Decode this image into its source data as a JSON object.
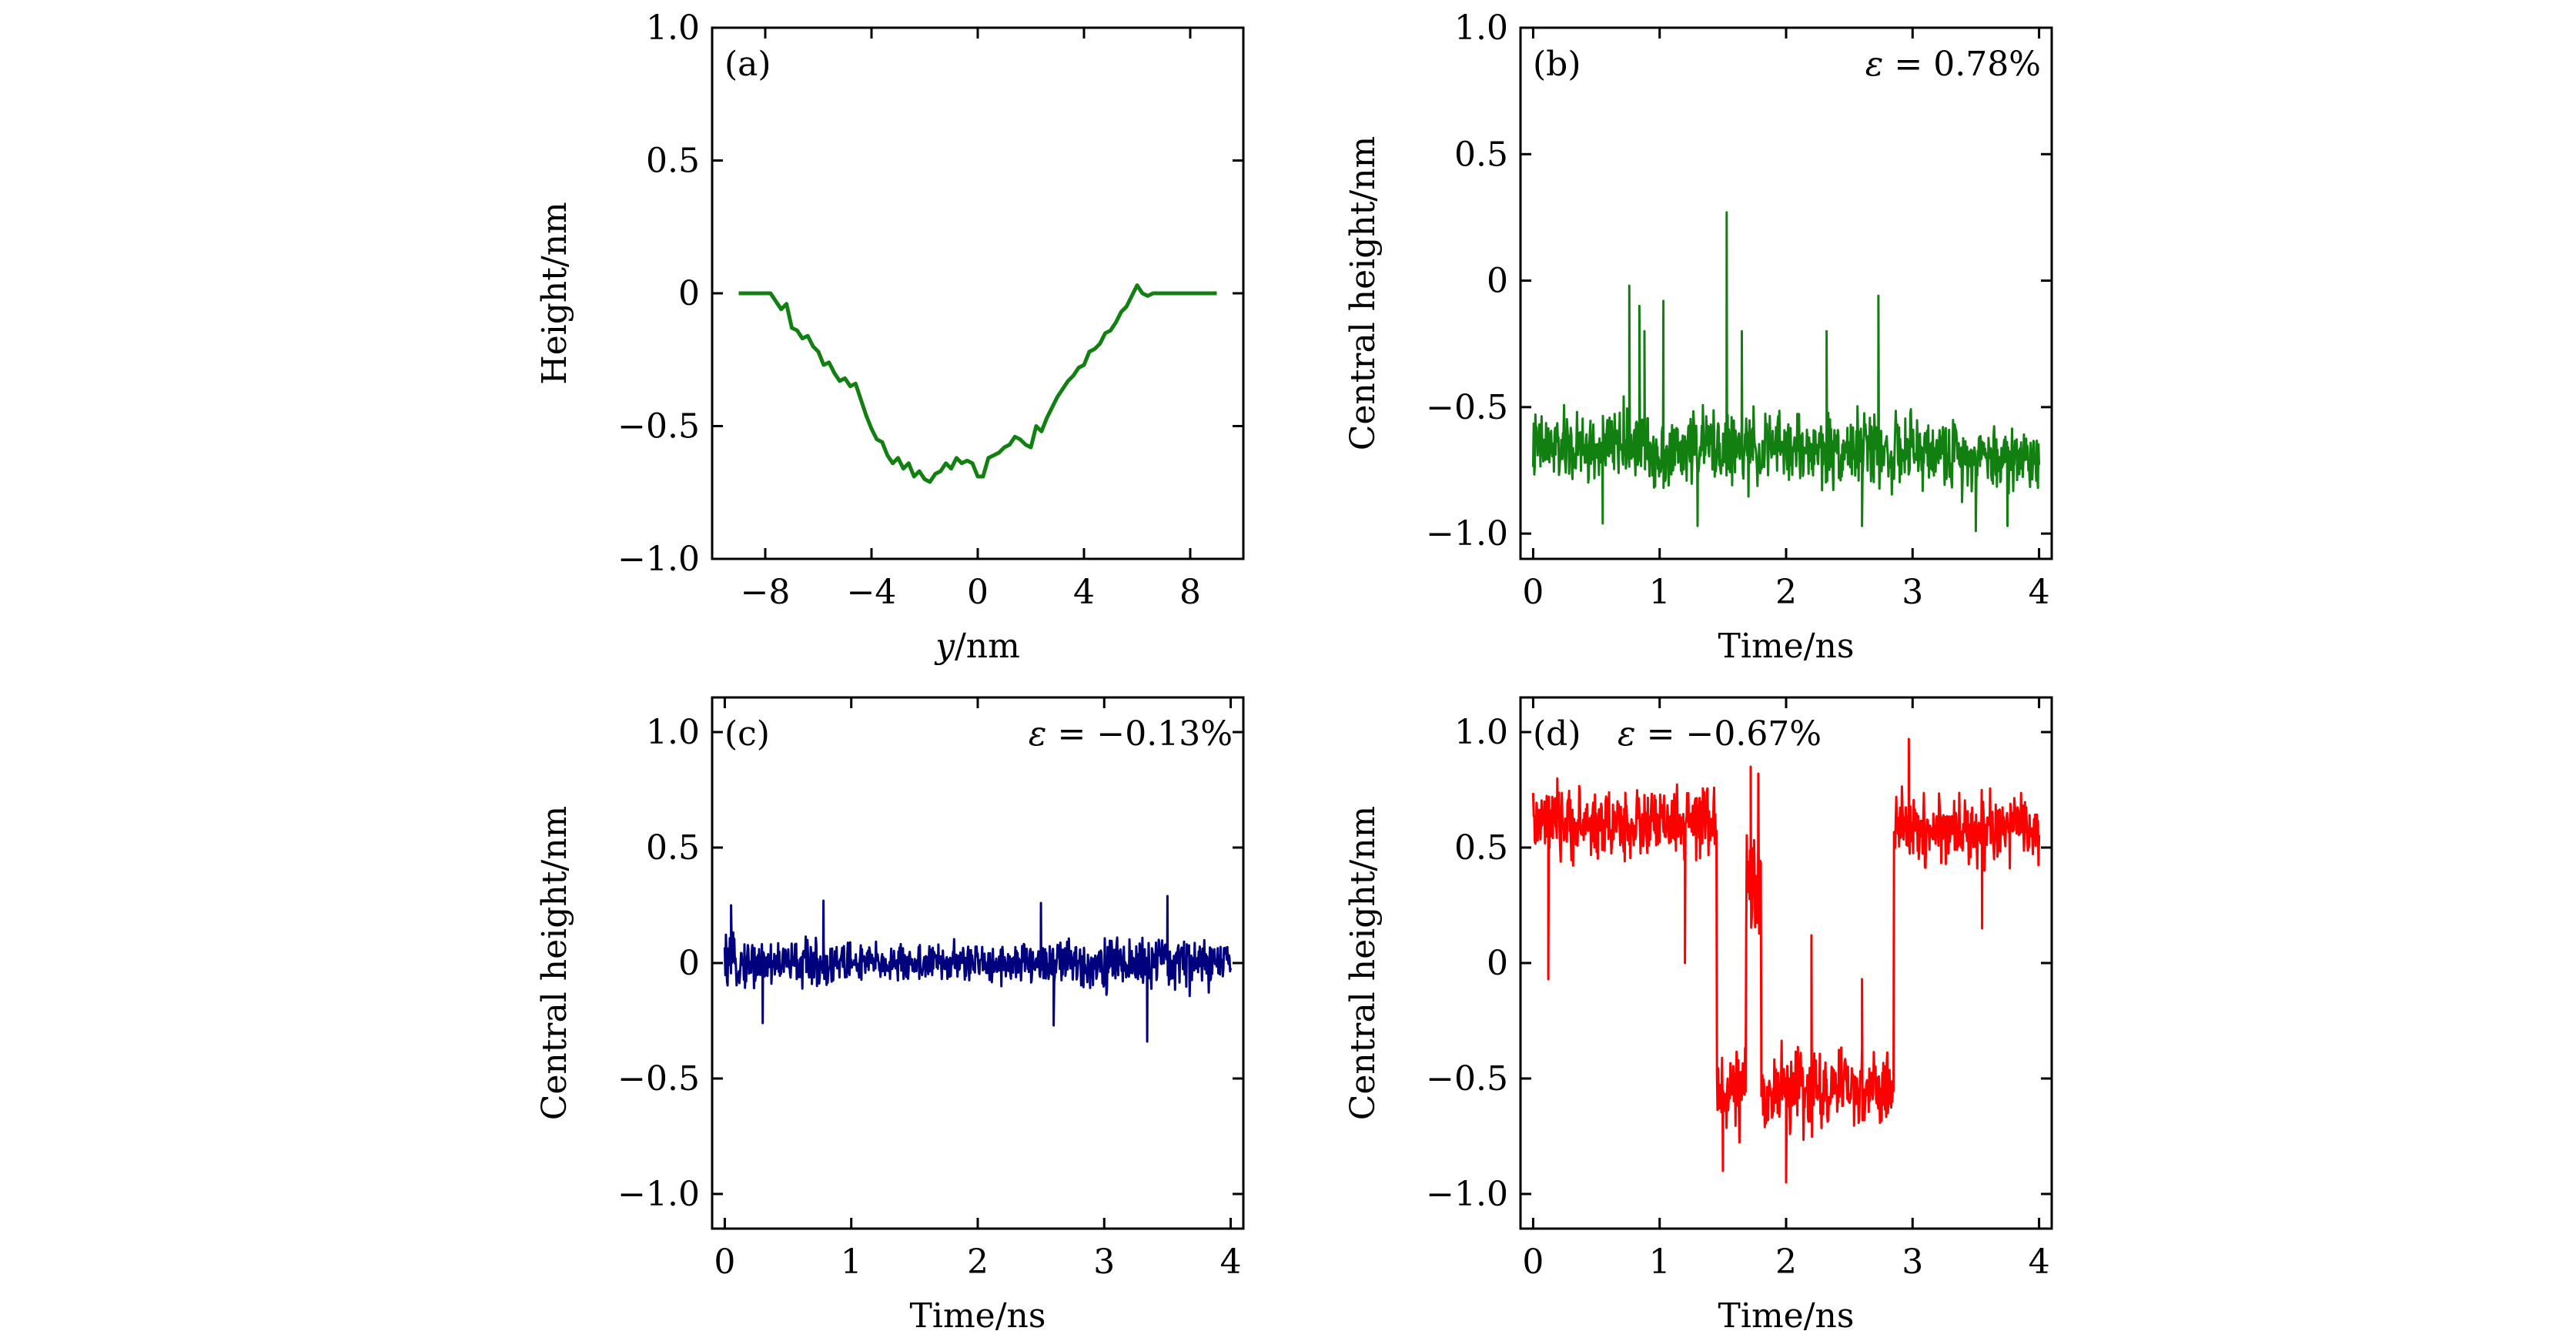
{
  "figure": {
    "panels_order": [
      "a",
      "b",
      "c",
      "d"
    ]
  },
  "chart_data": [
    {
      "id": "a",
      "type": "line",
      "panel_label": "(a)",
      "annotation": "",
      "xlabel": "y/nm",
      "ylabel": "Height/nm",
      "xlim": [
        -10,
        10
      ],
      "ylim": [
        -1.0,
        1.0
      ],
      "xticks": [
        -8,
        -4,
        0,
        4,
        8
      ],
      "xtick_labels": [
        "−8",
        "−4",
        "0",
        "4",
        "8"
      ],
      "yticks": [
        1.0,
        0.5,
        0,
        -0.5,
        -1.0
      ],
      "ytick_labels": [
        "1.0",
        "0.5",
        "0",
        "−0.5",
        "−1.0"
      ],
      "grid": false,
      "color": "#118011",
      "series": [
        {
          "x": [
            -9.0,
            -8.6,
            -8.2,
            -7.8,
            -7.6,
            -7.4,
            -7.2,
            -7.0,
            -6.8,
            -6.6,
            -6.4,
            -6.2,
            -6.0,
            -5.8,
            -5.6,
            -5.4,
            -5.2,
            -5.0,
            -4.8,
            -4.6,
            -4.4,
            -4.2,
            -4.0,
            -3.8,
            -3.6,
            -3.4,
            -3.2,
            -3.0,
            -2.8,
            -2.6,
            -2.4,
            -2.2,
            -2.0,
            -1.8,
            -1.6,
            -1.4,
            -1.2,
            -1.0,
            -0.8,
            -0.6,
            -0.4,
            -0.2,
            0.0,
            0.2,
            0.4,
            0.6,
            0.8,
            1.0,
            1.2,
            1.4,
            1.6,
            1.8,
            2.0,
            2.2,
            2.4,
            2.6,
            2.8,
            3.0,
            3.2,
            3.4,
            3.6,
            3.8,
            4.0,
            4.2,
            4.4,
            4.6,
            4.8,
            5.0,
            5.2,
            5.4,
            5.6,
            5.8,
            6.0,
            6.2,
            6.4,
            6.6,
            6.8,
            7.0,
            7.2,
            7.4,
            7.6,
            7.8,
            8.2,
            8.6,
            9.0
          ],
          "y": [
            0.0,
            0.0,
            0.0,
            0.0,
            -0.03,
            -0.06,
            -0.04,
            -0.13,
            -0.14,
            -0.17,
            -0.16,
            -0.2,
            -0.22,
            -0.27,
            -0.26,
            -0.3,
            -0.33,
            -0.32,
            -0.35,
            -0.34,
            -0.4,
            -0.46,
            -0.51,
            -0.55,
            -0.56,
            -0.61,
            -0.64,
            -0.62,
            -0.66,
            -0.64,
            -0.69,
            -0.67,
            -0.7,
            -0.71,
            -0.68,
            -0.67,
            -0.64,
            -0.66,
            -0.62,
            -0.64,
            -0.63,
            -0.64,
            -0.69,
            -0.69,
            -0.62,
            -0.61,
            -0.6,
            -0.58,
            -0.57,
            -0.54,
            -0.55,
            -0.57,
            -0.58,
            -0.5,
            -0.52,
            -0.47,
            -0.43,
            -0.39,
            -0.36,
            -0.33,
            -0.31,
            -0.28,
            -0.27,
            -0.22,
            -0.21,
            -0.19,
            -0.15,
            -0.14,
            -0.11,
            -0.07,
            -0.05,
            -0.01,
            0.03,
            0.0,
            -0.01,
            0.0,
            0.0,
            0.0,
            0.0,
            0.0,
            0.0,
            0.0,
            0.0,
            0.0,
            0.0
          ]
        }
      ]
    },
    {
      "id": "b",
      "type": "line",
      "panel_label": "(b)",
      "annotation": "ε = 0.78%",
      "xlabel": "Time/ns",
      "ylabel": "Central height/nm",
      "xlim": [
        -0.1,
        4.1
      ],
      "ylim": [
        -1.1,
        1.0
      ],
      "xticks": [
        0,
        1,
        2,
        3,
        4
      ],
      "xtick_labels": [
        "0",
        "1",
        "2",
        "3",
        "4"
      ],
      "yticks": [
        1.0,
        0.5,
        0,
        -0.5,
        -1.0
      ],
      "ytick_labels": [
        "1.0",
        "0.5",
        "0",
        "−0.5",
        "−1.0"
      ],
      "grid": false,
      "color": "#118011",
      "series": [
        {
          "x_start": 0,
          "x_end": 4,
          "segments": [
            {
              "x0": 0.0,
              "x1": 0.3,
              "mean": -0.66,
              "amp": 0.2
            },
            {
              "x0": 0.3,
              "x1": 0.6,
              "mean": -0.67,
              "amp": 0.21
            },
            {
              "x0": 0.6,
              "x1": 0.9,
              "mean": -0.64,
              "amp": 0.2
            },
            {
              "x0": 0.9,
              "x1": 1.2,
              "mean": -0.68,
              "amp": 0.21
            },
            {
              "x0": 1.2,
              "x1": 1.5,
              "mean": -0.65,
              "amp": 0.2
            },
            {
              "x0": 1.5,
              "x1": 1.8,
              "mean": -0.67,
              "amp": 0.21
            },
            {
              "x0": 1.8,
              "x1": 2.1,
              "mean": -0.66,
              "amp": 0.2
            },
            {
              "x0": 2.1,
              "x1": 2.4,
              "mean": -0.67,
              "amp": 0.21
            },
            {
              "x0": 2.4,
              "x1": 2.7,
              "mean": -0.66,
              "amp": 0.2
            },
            {
              "x0": 2.7,
              "x1": 3.0,
              "mean": -0.68,
              "amp": 0.21
            },
            {
              "x0": 3.0,
              "x1": 3.3,
              "mean": -0.68,
              "amp": 0.19
            },
            {
              "x0": 3.3,
              "x1": 3.6,
              "mean": -0.69,
              "amp": 0.2
            },
            {
              "x0": 3.6,
              "x1": 4.0,
              "mean": -0.7,
              "amp": 0.2
            }
          ],
          "spikes": [
            {
              "x": 0.76,
              "y": -0.02
            },
            {
              "x": 0.84,
              "y": -0.1
            },
            {
              "x": 1.03,
              "y": -0.08
            },
            {
              "x": 1.53,
              "y": 0.27
            },
            {
              "x": 2.73,
              "y": -0.06
            },
            {
              "x": 0.88,
              "y": -0.2
            },
            {
              "x": 1.65,
              "y": -0.2
            },
            {
              "x": 2.32,
              "y": -0.2
            }
          ],
          "dips": [
            {
              "x": 0.55,
              "y": -0.96
            },
            {
              "x": 1.3,
              "y": -0.97
            },
            {
              "x": 2.6,
              "y": -0.97
            },
            {
              "x": 3.5,
              "y": -0.99
            },
            {
              "x": 3.75,
              "y": -0.97
            }
          ]
        }
      ]
    },
    {
      "id": "c",
      "type": "line",
      "panel_label": "(c)",
      "annotation": "ε = −0.13%",
      "xlabel": "Time/ns",
      "ylabel": "Central height/nm",
      "xlim": [
        -0.1,
        4.1
      ],
      "ylim": [
        -1.15,
        1.15
      ],
      "xticks": [
        0,
        1,
        2,
        3,
        4
      ],
      "xtick_labels": [
        "0",
        "1",
        "2",
        "3",
        "4"
      ],
      "yticks": [
        1.0,
        0.5,
        0,
        -0.5,
        -1.0
      ],
      "ytick_labels": [
        "1.0",
        "0.5",
        "0",
        "−0.5",
        "−1.0"
      ],
      "grid": false,
      "color": "#00007f",
      "series": [
        {
          "x_start": 0,
          "x_end": 4,
          "segments": [
            {
              "x0": 0.0,
              "x1": 1.0,
              "mean": 0.0,
              "amp": 0.15
            },
            {
              "x0": 1.0,
              "x1": 2.4,
              "mean": 0.0,
              "amp": 0.12
            },
            {
              "x0": 2.4,
              "x1": 4.0,
              "mean": 0.0,
              "amp": 0.16
            }
          ],
          "spikes": [
            {
              "x": 0.05,
              "y": 0.25
            },
            {
              "x": 0.78,
              "y": 0.27
            },
            {
              "x": 3.5,
              "y": 0.29
            },
            {
              "x": 2.5,
              "y": 0.26
            }
          ],
          "dips": [
            {
              "x": 0.3,
              "y": -0.26
            },
            {
              "x": 2.6,
              "y": -0.27
            },
            {
              "x": 3.34,
              "y": -0.34
            }
          ]
        }
      ]
    },
    {
      "id": "d",
      "type": "line",
      "panel_label": "(d)",
      "annotation": "ε = −0.67%",
      "xlabel": "Time/ns",
      "ylabel": "Central height/nm",
      "xlim": [
        -0.1,
        4.1
      ],
      "ylim": [
        -1.15,
        1.15
      ],
      "xticks": [
        0,
        1,
        2,
        3,
        4
      ],
      "xtick_labels": [
        "0",
        "1",
        "2",
        "3",
        "4"
      ],
      "yticks": [
        1.0,
        0.5,
        0,
        -0.5,
        -1.0
      ],
      "ytick_labels": [
        "1.0",
        "0.5",
        "0",
        "−0.5",
        "−1.0"
      ],
      "grid": false,
      "color": "#ff0000",
      "series": [
        {
          "x_start": 0,
          "x_end": 4,
          "segments": [
            {
              "x0": 0.0,
              "x1": 1.45,
              "mean": 0.6,
              "amp": 0.22
            },
            {
              "x0": 1.45,
              "x1": 1.68,
              "mean": -0.55,
              "amp": 0.25
            },
            {
              "x0": 1.68,
              "x1": 1.8,
              "mean": 0.3,
              "amp": 0.45
            },
            {
              "x0": 1.8,
              "x1": 2.85,
              "mean": -0.55,
              "amp": 0.25
            },
            {
              "x0": 2.85,
              "x1": 4.0,
              "mean": 0.58,
              "amp": 0.22
            }
          ],
          "spikes": [
            {
              "x": 2.97,
              "y": 0.97
            },
            {
              "x": 1.72,
              "y": 0.85
            },
            {
              "x": 1.78,
              "y": 0.82
            },
            {
              "x": 2.2,
              "y": 0.12
            },
            {
              "x": 2.6,
              "y": -0.07
            }
          ],
          "dips": [
            {
              "x": 0.12,
              "y": -0.07
            },
            {
              "x": 1.2,
              "y": 0.0
            },
            {
              "x": 2.0,
              "y": -0.95
            },
            {
              "x": 1.5,
              "y": -0.9
            },
            {
              "x": 3.55,
              "y": 0.15
            }
          ]
        }
      ]
    }
  ]
}
